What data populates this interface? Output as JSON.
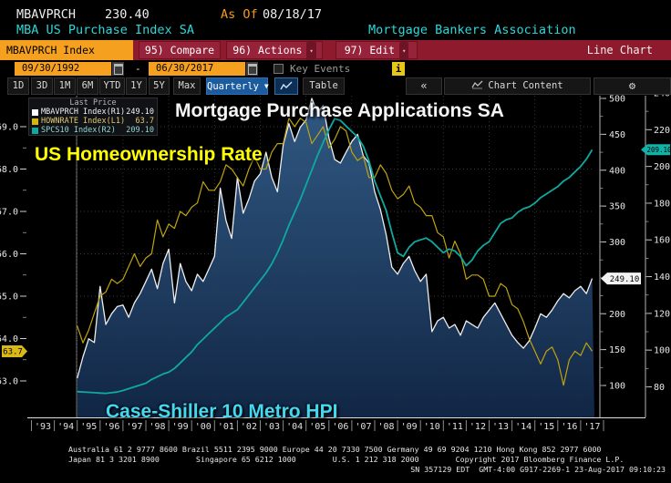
{
  "header": {
    "ticker": "MBAVPRCH",
    "last_value": "230.40",
    "as_of_label": "As Of",
    "as_of_date": "08/18/17",
    "security_name": "MBA US Purchase Index SA",
    "source": "Mortgage Bankers Association"
  },
  "toolbar": {
    "ticker_field": "MBAVPRCH Index",
    "compare_label": "95) Compare",
    "actions_label": "96) Actions",
    "edit_label": "97) Edit",
    "chart_type_label": "Line Chart"
  },
  "daterange": {
    "start": "09/30/1992",
    "dash": "-",
    "end": "06/30/2017",
    "key_events_label": "Key Events",
    "info_label": "i"
  },
  "tabs": {
    "ranges": [
      "1D",
      "3D",
      "1M",
      "6M",
      "YTD",
      "1Y",
      "5Y",
      "Max"
    ],
    "period": "Quarterly",
    "table_label": "Table",
    "collapse_label": "«",
    "chart_content_label": "Chart Content",
    "gear_icon": "⚙"
  },
  "legend": {
    "title": "Last Price",
    "items": [
      {
        "name": "MBAVPRCH Index",
        "scale": "(R1)",
        "value": "249.10",
        "color": "#ffffff",
        "text_color": "#f2f2f2"
      },
      {
        "name": "HOWNRATE Index",
        "scale": "(L1)",
        "value": "63.7",
        "color": "#d7b60c",
        "text_color": "#e0cb70"
      },
      {
        "name": "SPCS10 Index",
        "scale": "(R2)",
        "value": "209.10",
        "color": "#0fa9a0",
        "text_color": "#8fd8d2"
      }
    ]
  },
  "annotations": {
    "mortgage": {
      "text": "Mortgage Purchase Applications SA",
      "color": "#f5f5f5"
    },
    "homeownership": {
      "text": "US Homeownership Rate",
      "color": "#ffff00"
    },
    "caseshiller": {
      "text": "Case-Shiller 10 Metro HPI",
      "color": "#45d9f0"
    }
  },
  "chart_data": {
    "type": "line",
    "x_start": 1995.0,
    "x_step": 0.25,
    "x_labels": [
      "'93",
      "'94",
      "'95",
      "'96",
      "'97",
      "'98",
      "'99",
      "'00",
      "'01",
      "'02",
      "'03",
      "'04",
      "'05",
      "'06",
      "'07",
      "'08",
      "'09",
      "'10",
      "'11",
      "'12",
      "'13",
      "'14",
      "'15",
      "'16",
      "'17"
    ],
    "axes": {
      "left_L1": {
        "ticks": [
          69.0,
          68.0,
          67.0,
          66.0,
          65.0,
          64.0,
          63.0
        ],
        "decimals": 1
      },
      "right_R1": {
        "ticks": [
          500,
          450,
          400,
          350,
          300,
          200,
          150,
          100
        ],
        "minor_step": 25,
        "min": 100,
        "max": 500
      },
      "right_R2": {
        "ticks": [
          240,
          220,
          200,
          180,
          160,
          140,
          120,
          100,
          80
        ],
        "minor_step": 10,
        "min": 80,
        "max": 240
      }
    },
    "badges": {
      "r1_last": {
        "text": "249.10",
        "value": 249.1,
        "bg": "#f2f2f2"
      },
      "r2_last": {
        "text": "209.10",
        "value": 209.1,
        "bg": "#0fb3a8"
      },
      "l1_last": {
        "text": "63.7",
        "value": 63.7,
        "bg": "#d9b916"
      }
    },
    "grid": {
      "h_values_L1": [
        69,
        68,
        67,
        66,
        65,
        64,
        63
      ],
      "v_years": [
        1995,
        1997,
        1999,
        2001,
        2003,
        2005,
        2007,
        2009,
        2011,
        2013,
        2015,
        2017
      ]
    },
    "series": [
      {
        "name": "MBAVPRCH Index",
        "axis": "R1",
        "color": "#eeeeee",
        "width": 1.3,
        "fill": true,
        "values": [
          110,
          140,
          165,
          160,
          238,
          185,
          200,
          210,
          212,
          195,
          215,
          228,
          245,
          262,
          235,
          270,
          290,
          215,
          270,
          245,
          232,
          255,
          245,
          262,
          280,
          375,
          330,
          305,
          390,
          340,
          360,
          385,
          395,
          425,
          390,
          370,
          435,
          465,
          440,
          460,
          470,
          500,
          480,
          490,
          445,
          415,
          410,
          425,
          440,
          450,
          420,
          410,
          370,
          345,
          310,
          265,
          255,
          270,
          280,
          260,
          245,
          255,
          175,
          190,
          195,
          180,
          185,
          170,
          190,
          185,
          180,
          195,
          205,
          215,
          200,
          185,
          170,
          160,
          152,
          162,
          180,
          200,
          195,
          205,
          218,
          228,
          222,
          232,
          238,
          228,
          249.1
        ]
      },
      {
        "name": "HOWNRATE Index",
        "axis": "L1",
        "color": "#bfa30f",
        "width": 1.2,
        "fill": false,
        "values": [
          64.3,
          63.9,
          64.2,
          64.6,
          65.0,
          65.1,
          65.4,
          65.3,
          65.4,
          65.7,
          66.0,
          65.7,
          65.9,
          66.0,
          66.8,
          66.4,
          66.7,
          66.6,
          67.0,
          66.9,
          67.1,
          67.2,
          67.7,
          67.5,
          67.5,
          67.7,
          68.1,
          68.0,
          67.8,
          67.6,
          68.0,
          68.3,
          68.0,
          68.0,
          68.4,
          68.6,
          68.6,
          69.2,
          69.0,
          69.2,
          69.1,
          68.6,
          68.8,
          69.0,
          68.5,
          68.7,
          69.0,
          68.9,
          68.4,
          68.2,
          68.3,
          67.8,
          67.8,
          68.1,
          67.9,
          67.5,
          67.3,
          67.4,
          67.6,
          67.2,
          67.1,
          66.9,
          66.9,
          66.5,
          66.4,
          65.9,
          66.3,
          66.0,
          65.4,
          65.5,
          65.5,
          65.4,
          65.0,
          65.0,
          65.3,
          65.2,
          64.8,
          64.7,
          64.4,
          64.0,
          63.7,
          63.4,
          63.7,
          63.8,
          63.5,
          62.9,
          63.5,
          63.7,
          63.6,
          63.9,
          63.7
        ]
      },
      {
        "name": "SPCS10 Index",
        "axis": "R2",
        "color": "#0fa9a0",
        "width": 1.8,
        "fill": false,
        "values": [
          77.4,
          77.2,
          77.0,
          76.8,
          76.6,
          76.5,
          76.8,
          77.2,
          78,
          79,
          80,
          81,
          82,
          84,
          85.5,
          87,
          88,
          90,
          93,
          96,
          99,
          103,
          106,
          109,
          112,
          115,
          118,
          120,
          122,
          126,
          130,
          134,
          138,
          142,
          147,
          153,
          160,
          168,
          175,
          182,
          190,
          198,
          206,
          213,
          220,
          226,
          225,
          222,
          219,
          216,
          211,
          203,
          192,
          184,
          176,
          164,
          153,
          151,
          156,
          159,
          160,
          161,
          159,
          156,
          153,
          155,
          154,
          151,
          146,
          149,
          154,
          157,
          159,
          164,
          169,
          171,
          172,
          175,
          177,
          178,
          180,
          183,
          185,
          187,
          189,
          192,
          194,
          197,
          200,
          204,
          209.1
        ]
      }
    ]
  },
  "footer": {
    "line1": "Australia 61 2 9777 8600 Brazil 5511 2395 9000 Europe 44 20 7330 7500 Germany 49 69 9204 1210 Hong Kong 852 2977 6000",
    "line2": "Japan 81 3 3201 8900        Singapore 65 6212 1000        U.S. 1 212 318 2000        Copyright 2017 Bloomberg Finance L.P.",
    "line3": "SN 357129 EDT  GMT-4:00 G917-2269-1 23-Aug-2017 09:10:23"
  }
}
